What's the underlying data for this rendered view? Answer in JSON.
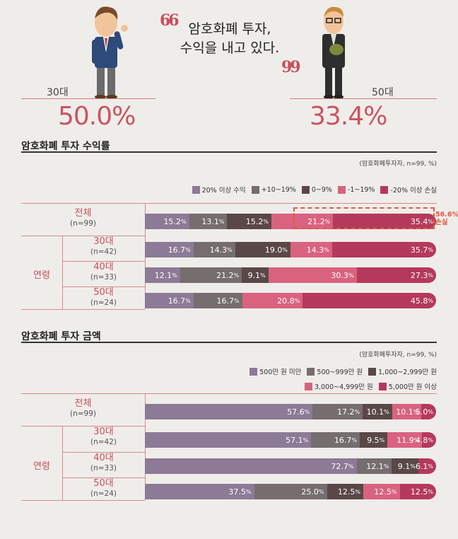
{
  "quote": {
    "open_mark": "66",
    "close_mark": "99",
    "line1": "암호화폐 투자,",
    "line2": "수익을 내고 있다."
  },
  "left_person": {
    "age": "30대",
    "value": "50.0%"
  },
  "right_person": {
    "age": "50대",
    "value": "33.4%"
  },
  "colors": {
    "c1": "#8c7a96",
    "c2": "#756d6e",
    "c3": "#5a4748",
    "c4": "#d9627f",
    "c5": "#b5395c"
  },
  "chart_data": [
    {
      "type": "bar",
      "title": "암호화폐 투자 수익률",
      "note": "(암호화폐투자자, n=99, %)",
      "legend": [
        "20% 이상 수익",
        "+10~19%",
        "0~9%",
        "-1~19%",
        "-20% 이상 손실"
      ],
      "group_label": "연령",
      "rows": [
        {
          "label": "전체",
          "n": "(n=99)",
          "values": [
            15.2,
            13.1,
            15.2,
            21.2,
            35.4
          ]
        },
        {
          "label": "30대",
          "n": "(n=42)",
          "values": [
            16.7,
            14.3,
            19.0,
            14.3,
            35.7
          ]
        },
        {
          "label": "40대",
          "n": "(n=33)",
          "values": [
            12.1,
            21.2,
            9.1,
            30.3,
            27.3
          ]
        },
        {
          "label": "50대",
          "n": "(n=24)",
          "values": [
            16.7,
            16.7,
            0,
            20.8,
            45.8
          ]
        }
      ],
      "value_labels": [
        [
          "15.2",
          "13.1",
          "15.2",
          "21.2",
          "35.4"
        ],
        [
          "16.7",
          "14.3",
          "19.0",
          "14.3",
          "35.7"
        ],
        [
          "12.1",
          "21.2",
          "9.1",
          "30.3",
          "27.3"
        ],
        [
          "16.7",
          "16.7",
          "",
          "20.8",
          "45.8"
        ]
      ],
      "annotation": {
        "value": "56.6%",
        "label": "손실"
      }
    },
    {
      "type": "bar",
      "title": "암호화폐 투자 금액",
      "note": "(암호화폐투자자, n=99, %)",
      "legend": [
        "500만 원 미만",
        "500~999만 원",
        "1,000~2,999만 원",
        "3,000~4,999만 원",
        "5,000만 원 이상"
      ],
      "group_label": "연령",
      "rows": [
        {
          "label": "전체",
          "n": "(n=99)",
          "values": [
            57.6,
            17.2,
            10.1,
            10.1,
            5.0
          ]
        },
        {
          "label": "30대",
          "n": "(n=42)",
          "values": [
            57.1,
            16.7,
            9.5,
            11.9,
            4.8
          ]
        },
        {
          "label": "40대",
          "n": "(n=33)",
          "values": [
            72.7,
            12.1,
            9.1,
            0,
            6.1
          ]
        },
        {
          "label": "50대",
          "n": "(n=24)",
          "values": [
            37.5,
            25.0,
            12.5,
            12.5,
            12.5
          ]
        }
      ],
      "value_labels": [
        [
          "57.6",
          "17.2",
          "10.1",
          "10.1",
          "5.0"
        ],
        [
          "57.1",
          "16.7",
          "9.5",
          "11.9",
          "4.8"
        ],
        [
          "72.7",
          "12.1",
          "9.1",
          "",
          "6.1"
        ],
        [
          "37.5",
          "25.0",
          "12.5",
          "12.5",
          "12.5"
        ]
      ]
    }
  ]
}
